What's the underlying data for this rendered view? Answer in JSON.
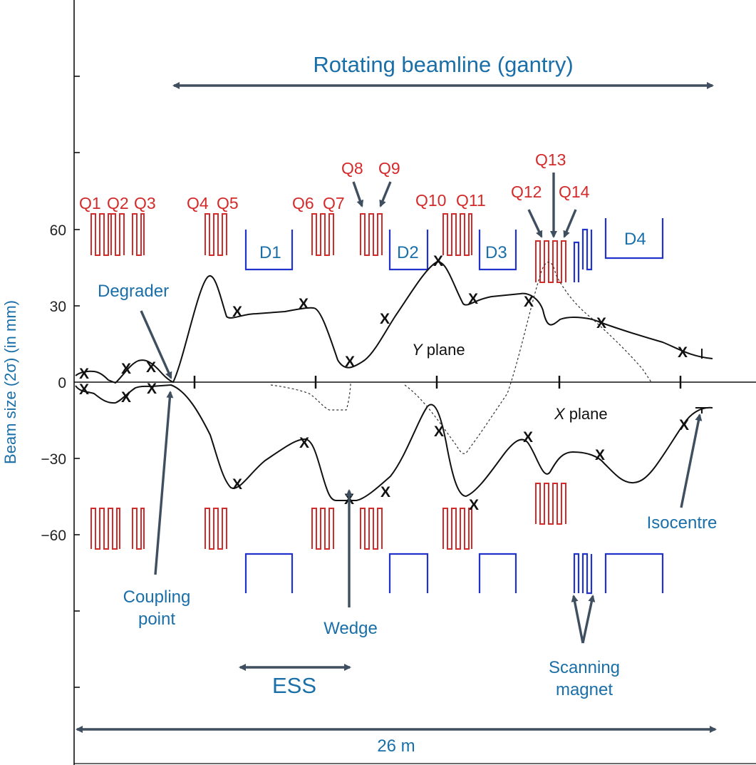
{
  "header": {
    "gantry_label": "Rotating beamline (gantry)"
  },
  "y_axis": {
    "label": "Beam size (2σ) (in mm)",
    "ticks": [
      "60",
      "30",
      "0",
      "−30",
      "−60"
    ]
  },
  "quadrupoles": {
    "q1": "Q1",
    "q2": "Q2",
    "q3": "Q3",
    "q4": "Q4",
    "q5": "Q5",
    "q6": "Q6",
    "q7": "Q7",
    "q8": "Q8",
    "q9": "Q9",
    "q10": "Q10",
    "q11": "Q11",
    "q12": "Q12",
    "q13": "Q13",
    "q14": "Q14"
  },
  "dipoles": {
    "d1": "D1",
    "d2": "D2",
    "d3": "D3",
    "d4": "D4"
  },
  "planes": {
    "y_italic": "Y",
    "y_rest": " plane",
    "x_italic": "X",
    "x_rest": " plane"
  },
  "annotations": {
    "degrader": "Degrader",
    "coupling_1": "Coupling",
    "coupling_2": "point",
    "wedge": "Wedge",
    "isocentre": "Isocentre",
    "scanning_1": "Scanning",
    "scanning_2": "magnet",
    "ess": "ESS",
    "length": "26 m"
  },
  "marker_symbol": "X",
  "colors": {
    "quadrupole": "#d42a2a",
    "dipole": "#2233cc",
    "label_blue": "#1a6fa8",
    "arrow": "#3f4f60"
  }
}
